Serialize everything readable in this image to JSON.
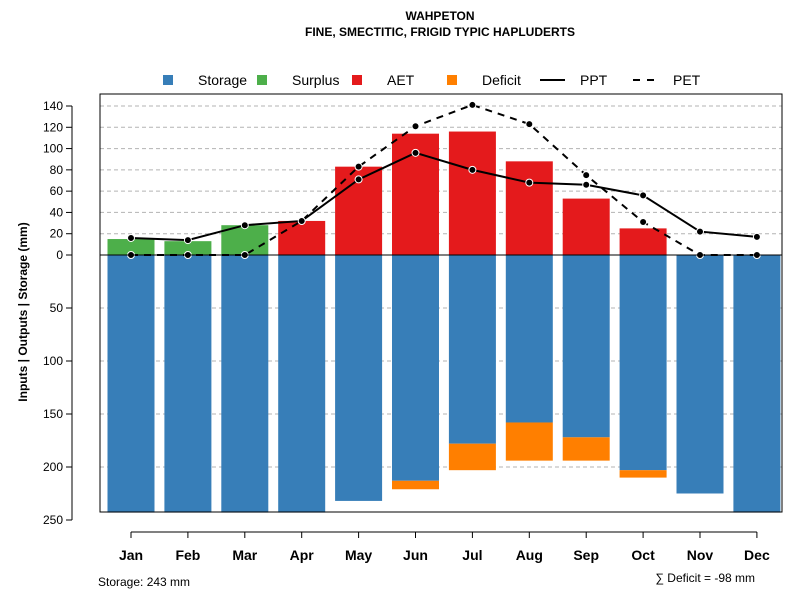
{
  "chart_data": {
    "type": "bar",
    "title": "WAHPETON",
    "subtitle": "FINE, SMECTITIC, FRIGID TYPIC HAPLUDERTS",
    "ylabel": "Inputs | Outputs | Storage     (mm)",
    "categories": [
      "Jan",
      "Feb",
      "Mar",
      "Apr",
      "May",
      "Jun",
      "Jul",
      "Aug",
      "Sep",
      "Oct",
      "Nov",
      "Dec"
    ],
    "y_ticks_top": [
      "140",
      "120",
      "100",
      "80",
      "60",
      "40",
      "20",
      "0"
    ],
    "y_ticks_bottom": [
      "50",
      "100",
      "150",
      "200",
      "250"
    ],
    "ylim_top": [
      0,
      140
    ],
    "ylim_bottom": [
      0,
      250
    ],
    "legend": [
      {
        "key": "storage",
        "label": "Storage",
        "kind": "box",
        "color": "#377EB8"
      },
      {
        "key": "surplus",
        "label": "Surplus",
        "kind": "box",
        "color": "#4DAF4A"
      },
      {
        "key": "aet",
        "label": "AET",
        "kind": "box",
        "color": "#E41A1C"
      },
      {
        "key": "deficit",
        "label": "Deficit",
        "kind": "box",
        "color": "#FF7F00"
      },
      {
        "key": "ppt",
        "label": "PPT",
        "kind": "solid",
        "color": "#000000"
      },
      {
        "key": "pet",
        "label": "PET",
        "kind": "dashed",
        "color": "#000000"
      }
    ],
    "series": [
      {
        "name": "Surplus",
        "color": "#4DAF4A",
        "values": [
          15,
          13,
          28,
          0,
          0,
          0,
          0,
          0,
          0,
          0,
          0,
          0
        ]
      },
      {
        "name": "AET",
        "color": "#E41A1C",
        "values": [
          0,
          0,
          0,
          32,
          83,
          114,
          116,
          88,
          53,
          25,
          0,
          0
        ]
      },
      {
        "name": "Storage",
        "color": "#377EB8",
        "values": [
          243,
          243,
          243,
          243,
          232,
          213,
          178,
          158,
          172,
          203,
          225,
          243
        ]
      },
      {
        "name": "Deficit",
        "color": "#FF7F00",
        "values": [
          0,
          0,
          0,
          0,
          0,
          8,
          25,
          36,
          22,
          7,
          0,
          0
        ]
      },
      {
        "name": "PPT",
        "color": "#000000",
        "values": [
          16,
          14,
          28,
          32,
          71,
          96,
          80,
          68,
          66,
          56,
          22,
          17
        ]
      },
      {
        "name": "PET",
        "color": "#000000",
        "values": [
          0,
          0,
          0,
          32,
          83,
          121,
          141,
          123,
          75,
          31,
          0,
          0
        ]
      }
    ],
    "storage_note": "Storage: 243 mm",
    "deficit_note": "∑ Deficit = -98 mm"
  }
}
